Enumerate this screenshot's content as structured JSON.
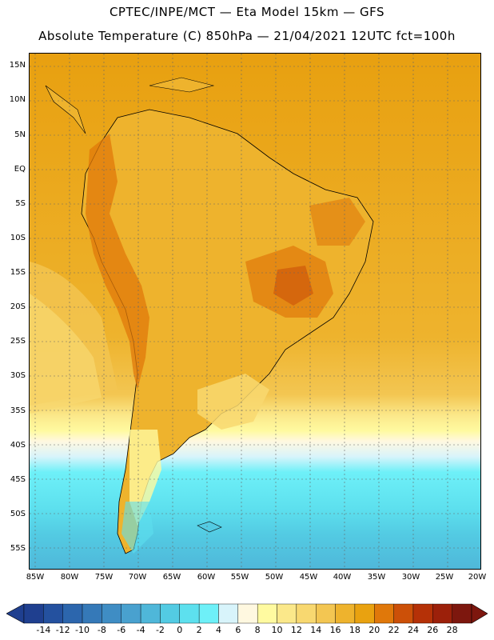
{
  "header": {
    "line1": "CPTEC/INPE/MCT —  Eta Model 15km — GFS",
    "line2": "Absolute Temperature (C) 850hPa — 21/04/2021 12UTC fct=100h"
  },
  "map": {
    "lat_labels": [
      "15N",
      "10N",
      "5N",
      "EQ",
      "5S",
      "10S",
      "15S",
      "20S",
      "25S",
      "30S",
      "35S",
      "40S",
      "45S",
      "50S",
      "55S"
    ],
    "lon_labels": [
      "85W",
      "80W",
      "75W",
      "70W",
      "65W",
      "60W",
      "55W",
      "50W",
      "45W",
      "40W",
      "35W",
      "30W",
      "25W",
      "20W"
    ]
  },
  "colorbar": {
    "labels": [
      "-14",
      "-12",
      "-10",
      "-8",
      "-6",
      "-4",
      "-2",
      "0",
      "2",
      "4",
      "6",
      "8",
      "10",
      "12",
      "14",
      "16",
      "18",
      "20",
      "22",
      "24",
      "26",
      "28"
    ],
    "colors": [
      "#1f3f8f",
      "#24519f",
      "#2c66ad",
      "#3579b8",
      "#3f8dc4",
      "#49a1cf",
      "#4fb7d9",
      "#53cbe3",
      "#5de0ee",
      "#6ef0f8",
      "#d8f4fb",
      "#fff8e0",
      "#fffaa0",
      "#fbe88a",
      "#f8d870",
      "#f3c652",
      "#eeb32d",
      "#e9a210",
      "#e0780a",
      "#cc5008",
      "#b53107",
      "#9c200a",
      "#7d170e"
    ]
  }
}
